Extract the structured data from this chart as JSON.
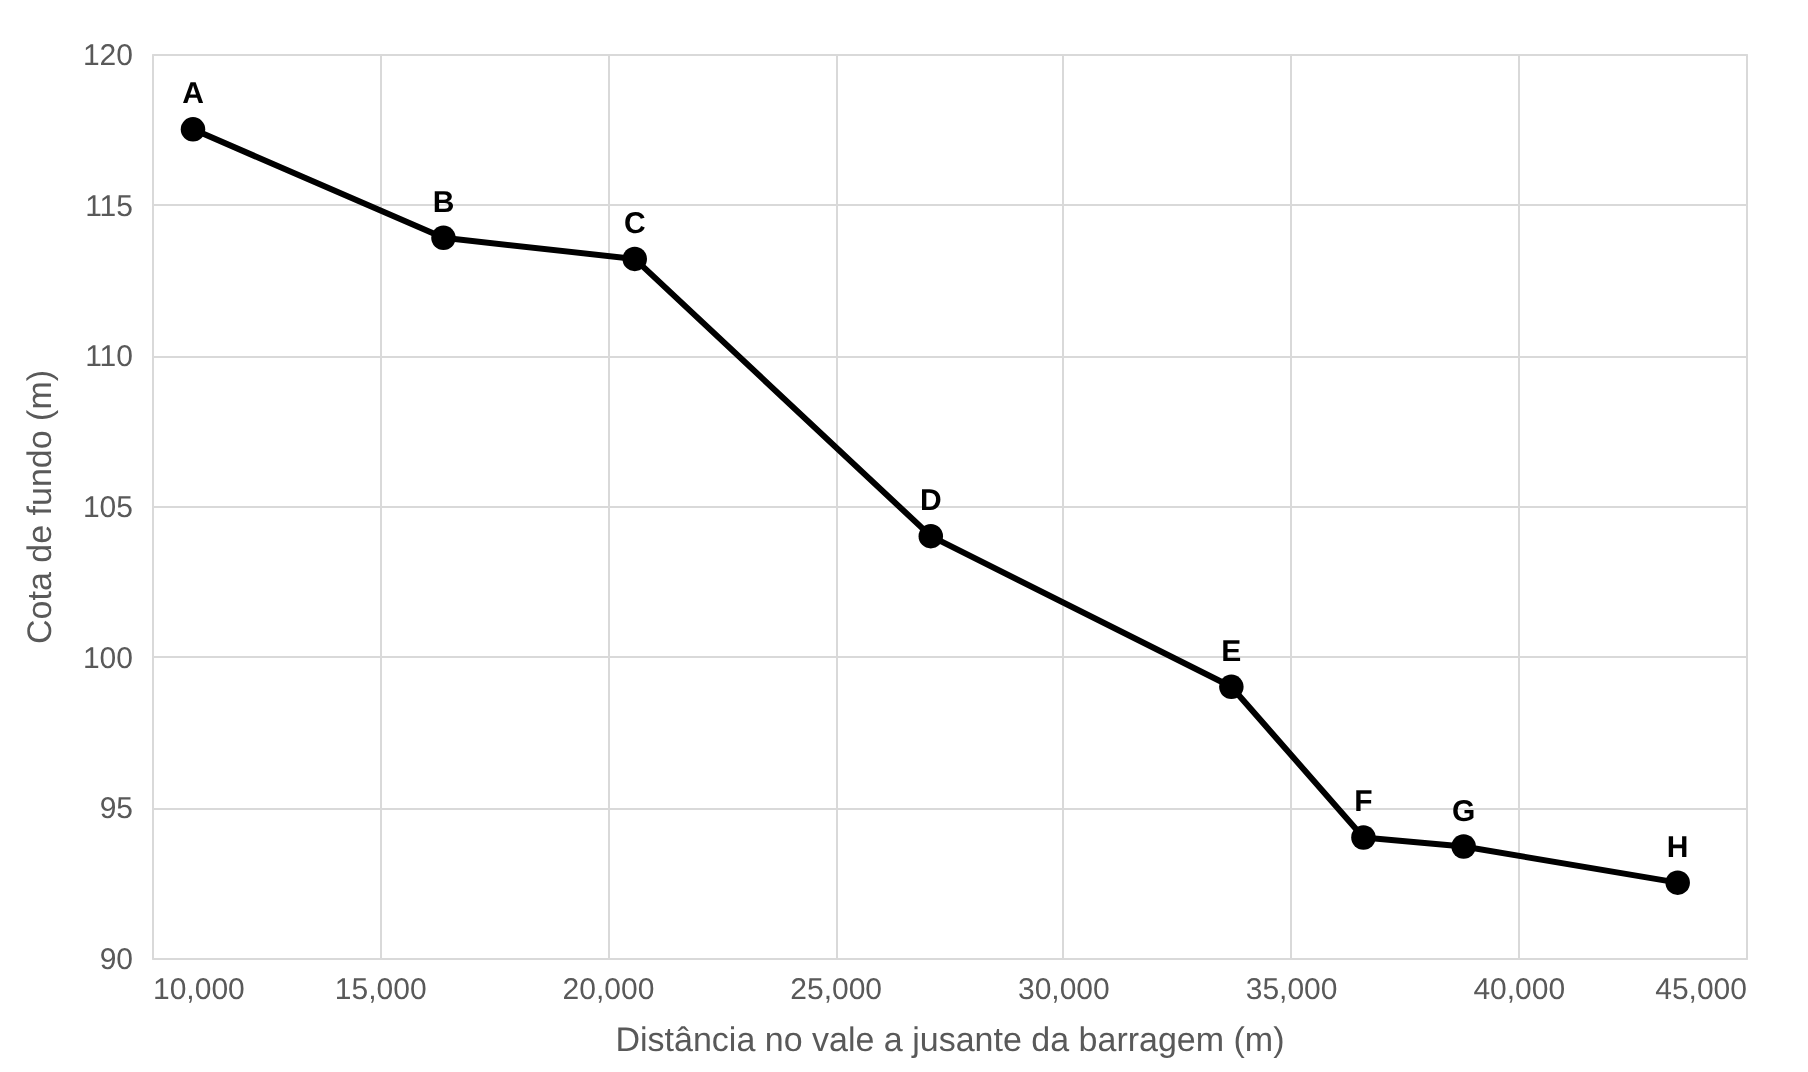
{
  "chart_data": {
    "type": "line",
    "xlabel": "Distância no vale a jusante da barragem (m)",
    "ylabel": "Cota de fundo (m)",
    "x": [
      10900,
      16400,
      20600,
      27100,
      33700,
      36600,
      38800,
      43500
    ],
    "series": [
      {
        "color": "#000000",
        "values": [
          117.5,
          113.9,
          113.2,
          104.0,
          99.0,
          94.0,
          93.7,
          92.5
        ]
      }
    ],
    "xlim": [
      10000,
      45000
    ],
    "xticks": [
      {
        "value": 10000,
        "label": "10,000"
      },
      {
        "value": 15000,
        "label": "15,000"
      },
      {
        "value": 20000,
        "label": "20,000"
      },
      {
        "value": 25000,
        "label": "25,000"
      },
      {
        "value": 30000,
        "label": "30,000"
      },
      {
        "value": 35000,
        "label": "35,000"
      },
      {
        "value": 40000,
        "label": "40,000"
      },
      {
        "value": 45000,
        "label": "45,000"
      }
    ],
    "ylim": [
      90,
      120
    ],
    "yticks": [
      90,
      95,
      100,
      105,
      110,
      115,
      120
    ],
    "annotations": [
      {
        "text": "A",
        "x": 10900,
        "y": 117.5
      },
      {
        "text": "B",
        "x": 16400,
        "y": 113.9
      },
      {
        "text": "C",
        "x": 20600,
        "y": 113.2
      },
      {
        "text": "D",
        "x": 27100,
        "y": 104.0
      },
      {
        "text": "E",
        "x": 33700,
        "y": 99.0
      },
      {
        "text": "F",
        "x": 36600,
        "y": 94.0
      },
      {
        "text": "G",
        "x": 38800,
        "y": 93.7
      },
      {
        "text": "H",
        "x": 43500,
        "y": 92.5
      }
    ],
    "grid": true,
    "marker": "circle",
    "line_style": "solid"
  }
}
